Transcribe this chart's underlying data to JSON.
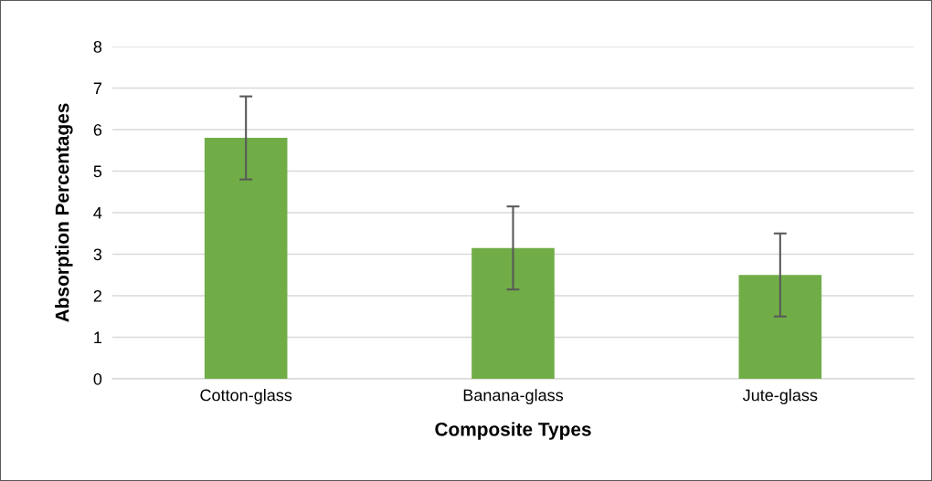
{
  "chart_data": {
    "type": "bar",
    "xlabel": "Composite Types",
    "ylabel": "Absorption Percentages",
    "categories": [
      "Cotton-glass",
      "Banana-glass",
      "Jute-glass"
    ],
    "values": [
      5.8,
      3.15,
      2.5
    ],
    "errors": [
      1,
      1,
      1
    ],
    "color": "#70ad47",
    "ylim": [
      0,
      8
    ],
    "yticks": [
      0,
      1,
      2,
      3,
      4,
      5,
      6,
      7,
      8
    ],
    "grid": "y",
    "legend": false
  }
}
